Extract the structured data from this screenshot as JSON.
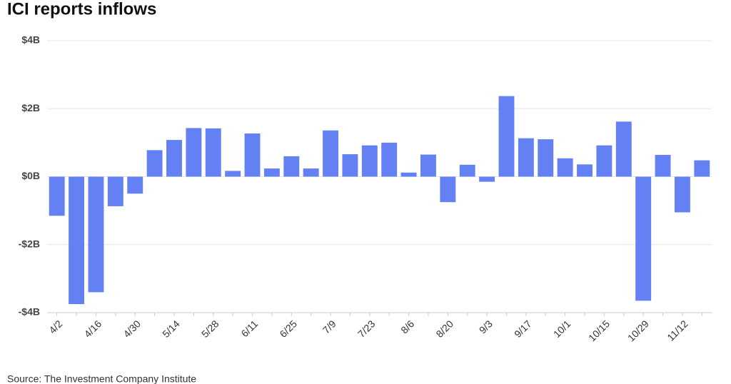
{
  "chart_data": {
    "type": "bar",
    "title": "ICI reports inflows",
    "source": "Source: The Investment Company Institute",
    "categories": [
      "4/2",
      null,
      "4/16",
      null,
      "4/30",
      null,
      "5/14",
      null,
      "5/28",
      null,
      "6/11",
      null,
      "6/25",
      null,
      "7/9",
      null,
      "7/23",
      null,
      "8/6",
      null,
      "8/20",
      null,
      "9/3",
      null,
      "9/17",
      null,
      "10/1",
      null,
      "10/15",
      null,
      "10/29",
      null,
      "11/12",
      null
    ],
    "values": [
      -1.15,
      -3.75,
      -3.4,
      -0.87,
      -0.5,
      0.78,
      1.08,
      1.43,
      1.42,
      0.17,
      1.27,
      0.24,
      0.6,
      0.24,
      1.36,
      0.66,
      0.92,
      1.0,
      0.12,
      0.65,
      -0.75,
      0.35,
      -0.15,
      2.37,
      1.13,
      1.1,
      0.54,
      0.36,
      0.92,
      1.62,
      -3.65,
      0.64,
      -1.05,
      0.48
    ],
    "color": "#6381f2",
    "ylim": [
      -4,
      4
    ],
    "yticks": [
      {
        "value": -4,
        "label": "-$4B"
      },
      {
        "value": -2,
        "label": "-$2B"
      },
      {
        "value": 0,
        "label": "$0B"
      },
      {
        "value": 2,
        "label": "$2B"
      },
      {
        "value": 4,
        "label": "$4B"
      }
    ],
    "grid": true
  }
}
